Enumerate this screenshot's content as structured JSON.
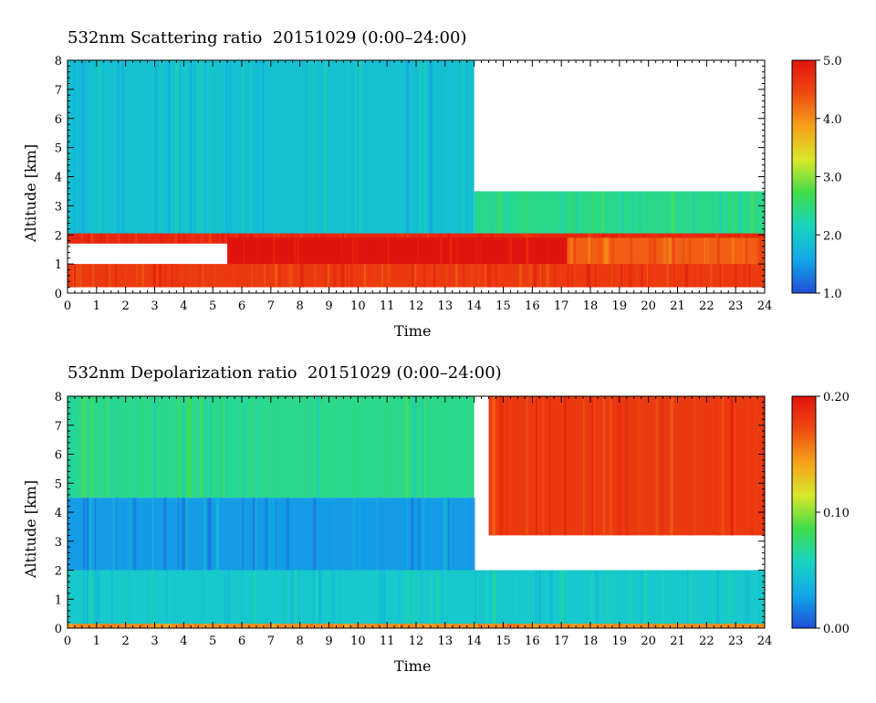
{
  "chart_data": [
    {
      "type": "heatmap",
      "title": "532nm Scattering ratio  20151029 (0:00–24:00)",
      "xlabel": "Time",
      "ylabel": "Altitude [km]",
      "xlim": [
        0,
        24
      ],
      "ylim": [
        0,
        8
      ],
      "x_ticks": [
        "0",
        "1",
        "2",
        "3",
        "4",
        "5",
        "6",
        "7",
        "8",
        "9",
        "10",
        "11",
        "12",
        "13",
        "14",
        "15",
        "16",
        "17",
        "18",
        "19",
        "20",
        "21",
        "22",
        "23",
        "24"
      ],
      "y_ticks": [
        "0",
        "1",
        "2",
        "3",
        "4",
        "5",
        "6",
        "7",
        "8"
      ],
      "colorbar": {
        "range": [
          1.0,
          5.0
        ],
        "labels": [
          "1.0",
          "2.0",
          "3.0",
          "4.0",
          "5.0"
        ],
        "colors": [
          "#1f4ed8",
          "#12a7e8",
          "#18d4c0",
          "#3fdc4a",
          "#d8e82a",
          "#f5a21a",
          "#f04a12",
          "#e0140c"
        ]
      },
      "features": [
        {
          "kind": "background",
          "x": [
            0,
            14
          ],
          "y": [
            2,
            8
          ],
          "value": 1.9
        },
        {
          "kind": "background",
          "x": [
            14,
            24
          ],
          "y": [
            2,
            3.5
          ],
          "value": 2.4
        },
        {
          "kind": "no_data",
          "x": [
            14.2,
            24
          ],
          "y": [
            3.5,
            8
          ]
        },
        {
          "kind": "layer_top",
          "x": [
            0,
            24
          ],
          "y": [
            1.7,
            2.05
          ],
          "value": 4.8
        },
        {
          "kind": "layer_core",
          "x": [
            5.5,
            17.2
          ],
          "y": [
            0.5,
            1.9
          ],
          "value": 5.0
        },
        {
          "kind": "layer_core",
          "x": [
            17.2,
            24
          ],
          "y": [
            0.3,
            1.9
          ],
          "value": 4.3
        },
        {
          "kind": "layer_low",
          "x": [
            0,
            24
          ],
          "y": [
            0.2,
            1.0
          ],
          "value": 4.6
        }
      ]
    },
    {
      "type": "heatmap",
      "title": "532nm Depolarization ratio  20151029 (0:00–24:00)",
      "xlabel": "Time",
      "ylabel": "Altitude [km]",
      "xlim": [
        0,
        24
      ],
      "ylim": [
        0,
        8
      ],
      "x_ticks": [
        "0",
        "1",
        "2",
        "3",
        "4",
        "5",
        "6",
        "7",
        "8",
        "9",
        "10",
        "11",
        "12",
        "13",
        "14",
        "15",
        "16",
        "17",
        "18",
        "19",
        "20",
        "21",
        "22",
        "23",
        "24"
      ],
      "y_ticks": [
        "0",
        "1",
        "2",
        "3",
        "4",
        "5",
        "6",
        "7",
        "8"
      ],
      "colorbar": {
        "range": [
          0.0,
          0.2
        ],
        "labels": [
          "0.00",
          "0.10",
          "0.20"
        ],
        "colors": [
          "#1f4ed8",
          "#12a7e8",
          "#18d4c0",
          "#3fdc4a",
          "#d8e82a",
          "#f5a21a",
          "#f04a12",
          "#e0140c"
        ]
      },
      "features": [
        {
          "kind": "background",
          "x": [
            0,
            24
          ],
          "y": [
            0,
            2
          ],
          "value": 0.05
        },
        {
          "kind": "background",
          "x": [
            0,
            14
          ],
          "y": [
            2,
            4.5
          ],
          "value": 0.025
        },
        {
          "kind": "background",
          "x": [
            0,
            14
          ],
          "y": [
            4.5,
            8
          ],
          "value": 0.07
        },
        {
          "kind": "high_depol_cloud",
          "x": [
            14.5,
            24
          ],
          "y": [
            3.2,
            8
          ],
          "value": 0.18
        },
        {
          "kind": "surface_layer",
          "x": [
            0,
            24
          ],
          "y": [
            0,
            0.15
          ],
          "value": 0.15
        }
      ]
    }
  ]
}
